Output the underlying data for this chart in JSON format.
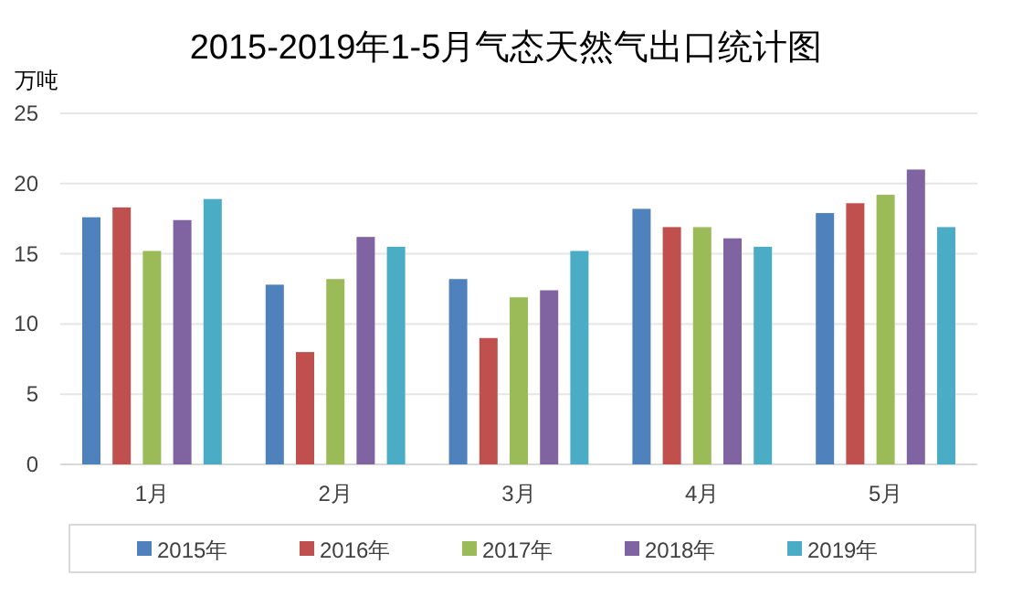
{
  "chart_data": {
    "type": "bar",
    "title": "2015-2019年1-5月气态天然气出口统计图",
    "ylabel": "万吨",
    "categories": [
      "1月",
      "2月",
      "3月",
      "4月",
      "5月"
    ],
    "series": [
      {
        "name": "2015年",
        "color": "#4f81bd",
        "values": [
          17.6,
          12.8,
          13.2,
          18.2,
          17.9
        ]
      },
      {
        "name": "2016年",
        "color": "#c0504d",
        "values": [
          18.3,
          8.0,
          9.0,
          16.9,
          18.6
        ]
      },
      {
        "name": "2017年",
        "color": "#9bbb59",
        "values": [
          15.2,
          13.2,
          11.9,
          16.9,
          19.2
        ]
      },
      {
        "name": "2018年",
        "color": "#8064a2",
        "values": [
          17.4,
          16.2,
          12.4,
          16.1,
          21.0
        ]
      },
      {
        "name": "2019年",
        "color": "#4bacc6",
        "values": [
          18.9,
          15.5,
          15.2,
          15.5,
          16.9
        ]
      }
    ],
    "ylim": [
      0,
      25
    ],
    "yticks": [
      0,
      5,
      10,
      15,
      20,
      25
    ],
    "grid": "y",
    "legend": "bottom"
  }
}
